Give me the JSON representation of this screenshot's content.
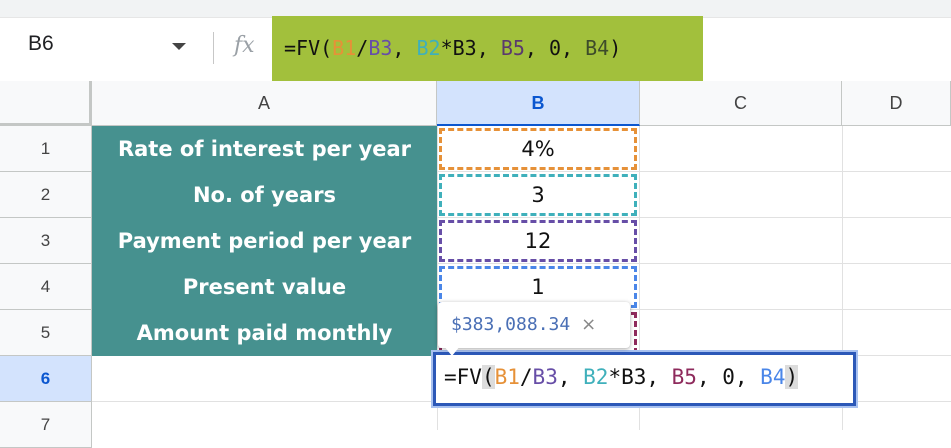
{
  "name_box": "B6",
  "fx_icon": "fx",
  "formula": [
    "=FV",
    "(",
    "B1",
    "/",
    "B3",
    ", ",
    "B2",
    "*B3, ",
    "B5",
    ", 0, ",
    "B4",
    ")"
  ],
  "column_headers": [
    "A",
    "B",
    "C",
    "D"
  ],
  "row_headers": [
    "1",
    "2",
    "3",
    "4",
    "5",
    "6",
    "7"
  ],
  "table": {
    "rows": [
      [
        "Rate of interest per year",
        "4%"
      ],
      [
        "No. of years",
        "3"
      ],
      [
        "Payment period per year",
        "12"
      ],
      [
        "Present value",
        "1"
      ],
      [
        "Amount paid monthly"
      ]
    ]
  },
  "tooltip": {
    "value": "$383,088.34",
    "close": "×"
  }
}
